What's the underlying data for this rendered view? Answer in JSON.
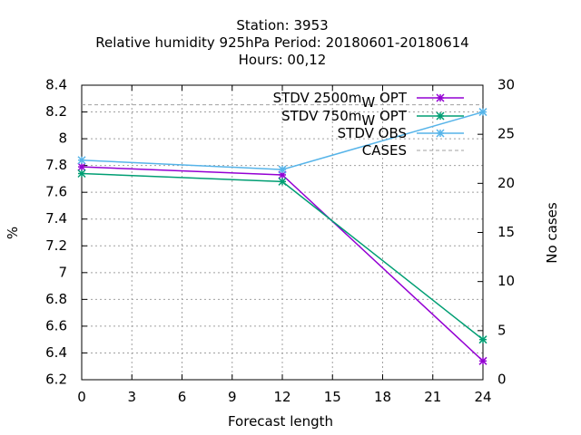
{
  "title": {
    "line1": "Station:      3953",
    "line2": "Relative humidity 925hPa   Period: 20180601-20180614",
    "line3": "Hours:  00,12"
  },
  "chart_data": {
    "type": "line",
    "xlabel": "Forecast length",
    "ylabel": "%",
    "y2label": "No cases",
    "xlim": [
      0,
      24
    ],
    "ylim": [
      6.2,
      8.4
    ],
    "y2lim": [
      0,
      30
    ],
    "xticks": [
      "0",
      "3",
      "6",
      "9",
      "12",
      "15",
      "18",
      "21",
      "24"
    ],
    "yticks": [
      "6.2",
      "6.4",
      "6.6",
      "6.8",
      "7",
      "7.2",
      "7.4",
      "7.6",
      "7.8",
      "8",
      "8.2",
      "8.4"
    ],
    "y2ticks": [
      "0",
      "5",
      "10",
      "15",
      "20",
      "25",
      "30"
    ],
    "grid": true,
    "legend_position": "top-right",
    "series": [
      {
        "name": "STDV 2500m",
        "subscript": "W",
        "suffix": "OPT",
        "color": "#9400d3",
        "marker": "x-star",
        "x": [
          0,
          12,
          24
        ],
        "values": [
          7.79,
          7.73,
          6.34
        ],
        "axis": "y"
      },
      {
        "name": "STDV 750m",
        "subscript": "W",
        "suffix": "OPT",
        "color": "#009e73",
        "marker": "x-star",
        "x": [
          0,
          12,
          24
        ],
        "values": [
          7.74,
          7.68,
          6.5
        ],
        "axis": "y"
      },
      {
        "name": "STDV OBS",
        "color": "#56b4e9",
        "marker": "x-star",
        "x": [
          0,
          12,
          24
        ],
        "values": [
          7.84,
          7.77,
          8.2
        ],
        "axis": "y"
      },
      {
        "name": "CASES",
        "color": "#a0a0a0",
        "dashed": true,
        "x": [
          0,
          12,
          24
        ],
        "values": [
          28,
          28,
          28
        ],
        "axis": "y2"
      }
    ]
  }
}
